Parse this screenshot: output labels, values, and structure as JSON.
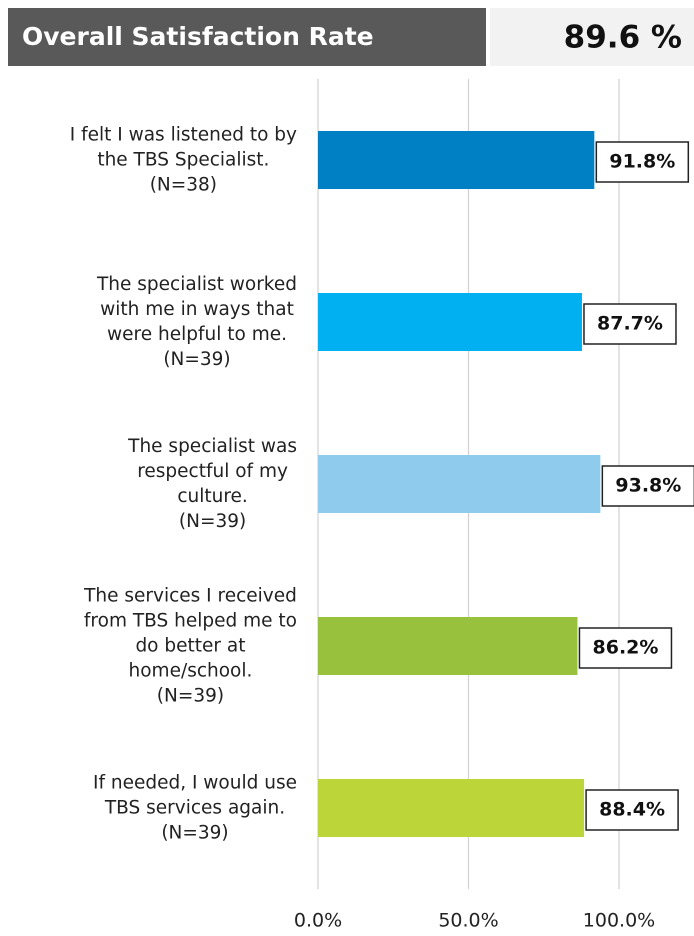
{
  "chart_data": {
    "type": "hbar",
    "title": "Overall Satisfaction Rate",
    "overall": "89.6 %",
    "categories": [
      "I felt I was listened to by\nthe TBS Specialist.\n(N=38)",
      "The specialist worked\nwith me in ways that\nwere helpful to me.\n(N=39)",
      "The specialist was\nrespectful of my\nculture.\n(N=39)",
      "The services I received\nfrom TBS helped me to\ndo better at\nhome/school.\n(N=39)",
      "If needed, I would use\nTBS services again.\n(N=39)"
    ],
    "values": [
      91.8,
      87.7,
      93.8,
      86.2,
      88.4
    ],
    "value_labels": [
      "91.8%",
      "87.7%",
      "93.8%",
      "86.2%",
      "88.4%"
    ],
    "colors": [
      "#0080c4",
      "#00b0f0",
      "#8ecbec",
      "#98c13d",
      "#bcd639"
    ],
    "xlim": [
      0,
      100
    ],
    "xticks": [
      {
        "value": 0,
        "label": "0.0%"
      },
      {
        "value": 50,
        "label": "50.0%"
      },
      {
        "value": 100,
        "label": "100.0%"
      }
    ],
    "grid": true
  }
}
